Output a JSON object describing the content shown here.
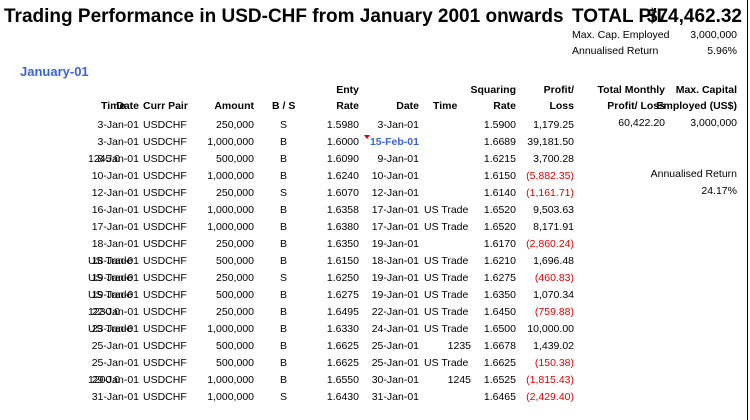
{
  "title": "Trading Performance in USD-CHF from January 2001 onwards",
  "total": {
    "label": "TOTAL P/L",
    "value": "$74,462.32"
  },
  "summary": [
    {
      "label": "Max. Cap. Employed",
      "value": "3,000,000"
    },
    {
      "label": "Annualised Return",
      "value": "5.96%"
    }
  ],
  "month_label": "January-01",
  "headers": {
    "date": "Date",
    "time": "Time",
    "pair": "Curr Pair",
    "amount": "Amount",
    "bs": "B / S",
    "entry_top": "Enty",
    "entry_bottom": "Rate",
    "date2": "Date",
    "time2": "Time",
    "sq_top": "Squaring",
    "sq_bottom": "Rate",
    "pl_top": "Profit/",
    "pl_bottom": "Loss",
    "tm_top": "Total Monthly",
    "tm_bottom": "Profit/ Loss",
    "mc_top": "Max. Capital",
    "mc_bottom": "Employed (US$)"
  },
  "rows": [
    {
      "date": "3-Jan-01",
      "time": "",
      "pair": "USDCHF",
      "amount": "250,000",
      "bs": "S",
      "rate": "1.5980",
      "date2": "3-Jan-01",
      "time2": "",
      "sq": "1.5900",
      "pl": "1,179.25",
      "neg": false
    },
    {
      "date": "3-Jan-01",
      "time": "",
      "pair": "USDCHF",
      "amount": "1,000,000",
      "bs": "B",
      "rate": "1.6000",
      "date2": "15-Feb-01",
      "time2": "",
      "sq": "1.6689",
      "pl": "39,181.50",
      "neg": false,
      "highlight": true
    },
    {
      "date": "8-Jan-01",
      "time": "1245.0",
      "pair": "USDCHF",
      "amount": "500,000",
      "bs": "B",
      "rate": "1.6090",
      "date2": "9-Jan-01",
      "time2": "",
      "sq": "1.6215",
      "pl": "3,700.28",
      "neg": false
    },
    {
      "date": "10-Jan-01",
      "time": "",
      "pair": "USDCHF",
      "amount": "1,000,000",
      "bs": "B",
      "rate": "1.6240",
      "date2": "10-Jan-01",
      "time2": "",
      "sq": "1.6150",
      "pl": "(5,882.35)",
      "neg": true
    },
    {
      "date": "12-Jan-01",
      "time": "",
      "pair": "USDCHF",
      "amount": "250,000",
      "bs": "S",
      "rate": "1.6070",
      "date2": "12-Jan-01",
      "time2": "",
      "sq": "1.6140",
      "pl": "(1,161.71)",
      "neg": true
    },
    {
      "date": "16-Jan-01",
      "time": "",
      "pair": "USDCHF",
      "amount": "1,000,000",
      "bs": "B",
      "rate": "1.6358",
      "date2": "17-Jan-01",
      "time2": "US Trade",
      "sq": "1.6520",
      "pl": "9,503.63",
      "neg": false
    },
    {
      "date": "17-Jan-01",
      "time": "",
      "pair": "USDCHF",
      "amount": "1,000,000",
      "bs": "B",
      "rate": "1.6380",
      "date2": "17-Jan-01",
      "time2": "US Trade",
      "sq": "1.6520",
      "pl": "8,171.91",
      "neg": false
    },
    {
      "date": "18-Jan-01",
      "time": "",
      "pair": "USDCHF",
      "amount": "250,000",
      "bs": "B",
      "rate": "1.6350",
      "date2": "19-Jan-01",
      "time2": "",
      "sq": "1.6170",
      "pl": "(2,860.24)",
      "neg": true
    },
    {
      "date": "18-Jan-01",
      "time": "US Trade",
      "pair": "USDCHF",
      "amount": "500,000",
      "bs": "B",
      "rate": "1.6150",
      "date2": "18-Jan-01",
      "time2": "US Trade",
      "sq": "1.6210",
      "pl": "1,696.48",
      "neg": false
    },
    {
      "date": "19-Jan-01",
      "time": "US Trade",
      "pair": "USDCHF",
      "amount": "250,000",
      "bs": "S",
      "rate": "1.6250",
      "date2": "19-Jan-01",
      "time2": "US Trade",
      "sq": "1.6275",
      "pl": "(460.83)",
      "neg": true
    },
    {
      "date": "19-Jan-01",
      "time": "US Trade",
      "pair": "USDCHF",
      "amount": "500,000",
      "bs": "B",
      "rate": "1.6275",
      "date2": "19-Jan-01",
      "time2": "US Trade",
      "sq": "1.6350",
      "pl": "1,070.34",
      "neg": false
    },
    {
      "date": "22-Jan-01",
      "time": "1230.0",
      "pair": "USDCHF",
      "amount": "250,000",
      "bs": "B",
      "rate": "1.6495",
      "date2": "22-Jan-01",
      "time2": "US Trade",
      "sq": "1.6450",
      "pl": "(759.88)",
      "neg": true
    },
    {
      "date": "23-Jan-01",
      "time": "US Trade",
      "pair": "USDCHF",
      "amount": "1,000,000",
      "bs": "B",
      "rate": "1.6330",
      "date2": "24-Jan-01",
      "time2": "US Trade",
      "sq": "1.6500",
      "pl": "10,000.00",
      "neg": false
    },
    {
      "date": "25-Jan-01",
      "time": "",
      "pair": "USDCHF",
      "amount": "500,000",
      "bs": "B",
      "rate": "1.6625",
      "date2": "25-Jan-01",
      "time2": "1235",
      "sq": "1.6678",
      "pl": "1,439.02",
      "neg": false
    },
    {
      "date": "25-Jan-01",
      "time": "",
      "pair": "USDCHF",
      "amount": "500,000",
      "bs": "B",
      "rate": "1.6625",
      "date2": "25-Jan-01",
      "time2": "US Trade",
      "sq": "1.6625",
      "pl": "(150.38)",
      "neg": true
    },
    {
      "date": "29-Jan-01",
      "time": "1200.0",
      "pair": "USDCHF",
      "amount": "1,000,000",
      "bs": "B",
      "rate": "1.6550",
      "date2": "30-Jan-01",
      "time2": "1245",
      "sq": "1.6525",
      "pl": "(1,815.43)",
      "neg": true
    },
    {
      "date": "31-Jan-01",
      "time": "",
      "pair": "USDCHF",
      "amount": "1,000,000",
      "bs": "S",
      "rate": "1.6430",
      "date2": "31-Jan-01",
      "time2": "",
      "sq": "1.6465",
      "pl": "(2,429.40)",
      "neg": true
    }
  ],
  "monthly": {
    "total_pl": "60,422.20",
    "max_capital": "3,000,000"
  },
  "annualised": {
    "label": "Annualised Return",
    "value": "24.17%"
  },
  "colors": {
    "negative": "#e00000",
    "accent": "#3a63d9"
  }
}
